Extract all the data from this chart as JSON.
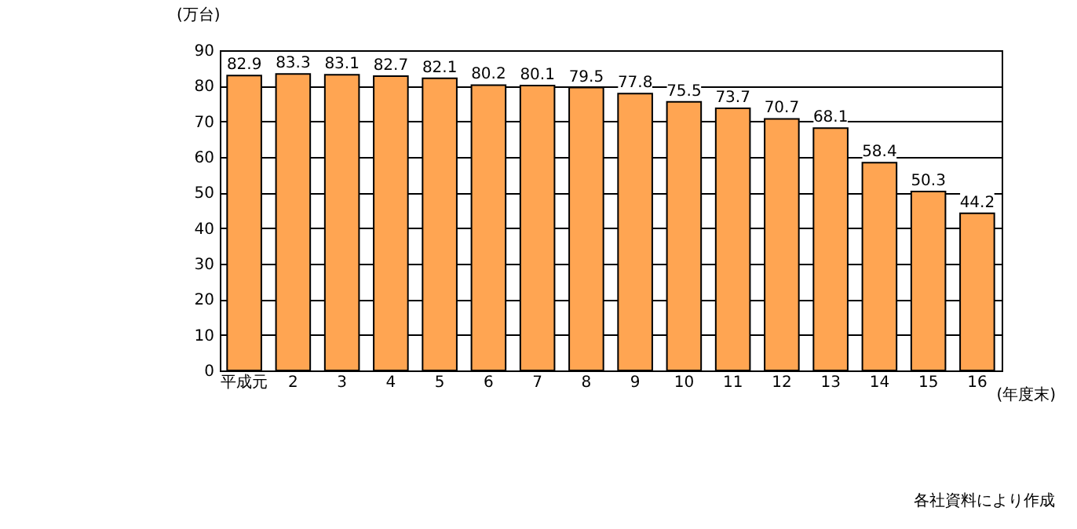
{
  "chart_data": {
    "type": "bar",
    "xlabel": "(年度末)",
    "ylabel": "(万台)",
    "categories": [
      "平成元",
      "2",
      "3",
      "4",
      "5",
      "6",
      "7",
      "8",
      "9",
      "10",
      "11",
      "12",
      "13",
      "14",
      "15",
      "16"
    ],
    "values": [
      82.9,
      83.3,
      83.1,
      82.7,
      82.1,
      80.2,
      80.1,
      79.5,
      77.8,
      75.5,
      73.7,
      70.7,
      68.1,
      58.4,
      50.3,
      44.2
    ],
    "color": "#ffa552",
    "ylim": [
      0,
      90
    ],
    "yticks": [
      0,
      10,
      20,
      30,
      40,
      50,
      60,
      70,
      80,
      90
    ],
    "grid": "y",
    "data_labels": true,
    "annotations": [
      "各社資料により作成"
    ]
  }
}
